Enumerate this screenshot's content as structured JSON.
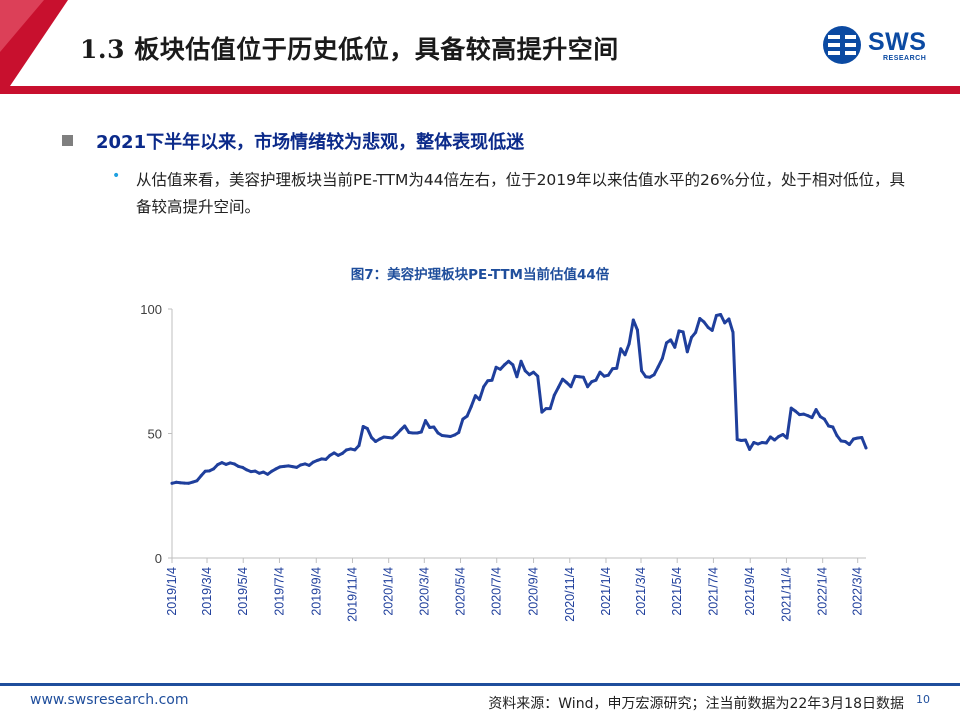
{
  "header": {
    "title": "1.3 板块估值位于历史低位，具备较高提升空间",
    "logo_text": "SWS",
    "logo_sub": "RESEARCH",
    "accent_color": "#c8102e",
    "brand_color": "#0b4aa2"
  },
  "body": {
    "heading": "2021下半年以来，市场情绪较为悲观，整体表现低迷",
    "point": "从估值来看，美容护理板块当前PE-TTM为44倍左右，位于2019年以来估值水平的26%分位，处于相对低位，具备较高提升空间。",
    "bullet_icon": "square-bullet-icon",
    "sub_bullet_icon": "dot-bullet-icon"
  },
  "chart_data": {
    "type": "line",
    "title": "图7：美容护理板块PE-TTM当前估值44倍",
    "xlabel": "",
    "ylabel": "",
    "ylim": [
      0,
      100
    ],
    "yticks": [
      "0",
      "50",
      "100"
    ],
    "x_ticks": [
      "2019/1/4",
      "2019/3/4",
      "2019/5/4",
      "2019/7/4",
      "2019/9/4",
      "2019/11/4",
      "2020/1/4",
      "2020/3/4",
      "2020/5/4",
      "2020/7/4",
      "2020/9/4",
      "2020/11/4",
      "2021/1/4",
      "2021/3/4",
      "2021/5/4",
      "2021/7/4",
      "2021/9/4",
      "2021/11/4",
      "2022/1/4",
      "2022/3/4"
    ],
    "grid": false,
    "line_color": "#1f3f9c",
    "series": [
      {
        "points": [
          [
            "2019-01-04",
            30.0
          ],
          [
            "2019-01-11",
            30.4
          ],
          [
            "2019-01-18",
            30.2
          ],
          [
            "2019-01-25",
            30.1
          ],
          [
            "2019-02-01",
            30.0
          ],
          [
            "2019-02-08",
            30.5
          ],
          [
            "2019-02-15",
            31.0
          ],
          [
            "2019-02-22",
            33.0
          ],
          [
            "2019-03-01",
            34.8
          ],
          [
            "2019-03-08",
            35.0
          ],
          [
            "2019-03-15",
            35.8
          ],
          [
            "2019-03-22",
            37.5
          ],
          [
            "2019-03-29",
            38.3
          ],
          [
            "2019-04-05",
            37.6
          ],
          [
            "2019-04-12",
            38.2
          ],
          [
            "2019-04-19",
            37.8
          ],
          [
            "2019-04-26",
            36.8
          ],
          [
            "2019-05-03",
            36.4
          ],
          [
            "2019-05-10",
            35.4
          ],
          [
            "2019-05-17",
            34.7
          ],
          [
            "2019-05-24",
            34.9
          ],
          [
            "2019-05-31",
            34.0
          ],
          [
            "2019-06-07",
            34.5
          ],
          [
            "2019-06-14",
            33.6
          ],
          [
            "2019-06-21",
            34.8
          ],
          [
            "2019-06-28",
            35.8
          ],
          [
            "2019-07-05",
            36.6
          ],
          [
            "2019-07-12",
            36.8
          ],
          [
            "2019-07-19",
            37.0
          ],
          [
            "2019-07-26",
            36.7
          ],
          [
            "2019-08-02",
            36.4
          ],
          [
            "2019-08-09",
            37.4
          ],
          [
            "2019-08-16",
            37.8
          ],
          [
            "2019-08-23",
            37.2
          ],
          [
            "2019-08-30",
            38.5
          ],
          [
            "2019-09-06",
            39.2
          ],
          [
            "2019-09-13",
            39.8
          ],
          [
            "2019-09-20",
            39.6
          ],
          [
            "2019-09-27",
            41.2
          ],
          [
            "2019-10-04",
            42.2
          ],
          [
            "2019-10-11",
            41.2
          ],
          [
            "2019-10-18",
            42.0
          ],
          [
            "2019-10-25",
            43.4
          ],
          [
            "2019-11-01",
            43.8
          ],
          [
            "2019-11-08",
            43.4
          ],
          [
            "2019-11-15",
            45.2
          ],
          [
            "2019-11-22",
            52.8
          ],
          [
            "2019-11-29",
            52.0
          ],
          [
            "2019-12-06",
            48.4
          ],
          [
            "2019-12-13",
            46.8
          ],
          [
            "2019-12-20",
            47.8
          ],
          [
            "2019-12-27",
            48.6
          ],
          [
            "2020-01-03",
            48.4
          ],
          [
            "2020-01-10",
            48.2
          ],
          [
            "2020-01-17",
            49.6
          ],
          [
            "2020-01-24",
            51.4
          ],
          [
            "2020-01-31",
            53.0
          ],
          [
            "2020-02-07",
            50.4
          ],
          [
            "2020-02-14",
            50.2
          ],
          [
            "2020-02-21",
            50.2
          ],
          [
            "2020-02-28",
            50.6
          ],
          [
            "2020-03-06",
            55.2
          ],
          [
            "2020-03-13",
            52.4
          ],
          [
            "2020-03-20",
            52.6
          ],
          [
            "2020-03-27",
            50.2
          ],
          [
            "2020-04-03",
            49.2
          ],
          [
            "2020-04-10",
            49.0
          ],
          [
            "2020-04-17",
            48.8
          ],
          [
            "2020-04-24",
            49.4
          ],
          [
            "2020-05-01",
            50.4
          ],
          [
            "2020-05-08",
            55.8
          ],
          [
            "2020-05-15",
            57.0
          ],
          [
            "2020-05-22",
            60.8
          ],
          [
            "2020-05-29",
            65.2
          ],
          [
            "2020-06-05",
            63.6
          ],
          [
            "2020-06-12",
            68.8
          ],
          [
            "2020-06-19",
            71.2
          ],
          [
            "2020-06-26",
            71.4
          ],
          [
            "2020-07-03",
            76.6
          ],
          [
            "2020-07-10",
            75.8
          ],
          [
            "2020-07-17",
            77.6
          ],
          [
            "2020-07-24",
            79.0
          ],
          [
            "2020-07-31",
            77.6
          ],
          [
            "2020-08-07",
            72.8
          ],
          [
            "2020-08-14",
            79.0
          ],
          [
            "2020-08-21",
            75.2
          ],
          [
            "2020-08-28",
            73.6
          ],
          [
            "2020-09-04",
            74.6
          ],
          [
            "2020-09-11",
            73.0
          ],
          [
            "2020-09-18",
            58.6
          ],
          [
            "2020-09-25",
            60.0
          ],
          [
            "2020-10-02",
            60.0
          ],
          [
            "2020-10-09",
            65.4
          ],
          [
            "2020-10-16",
            68.6
          ],
          [
            "2020-10-23",
            71.8
          ],
          [
            "2020-10-30",
            70.4
          ],
          [
            "2020-11-06",
            68.8
          ],
          [
            "2020-11-13",
            73.0
          ],
          [
            "2020-11-20",
            72.8
          ],
          [
            "2020-11-27",
            72.6
          ],
          [
            "2020-12-04",
            68.8
          ],
          [
            "2020-12-11",
            70.8
          ],
          [
            "2020-12-18",
            71.4
          ],
          [
            "2020-12-25",
            74.6
          ],
          [
            "2021-01-01",
            73.0
          ],
          [
            "2021-01-08",
            73.4
          ],
          [
            "2021-01-15",
            76.0
          ],
          [
            "2021-01-22",
            76.2
          ],
          [
            "2021-01-29",
            84.0
          ],
          [
            "2021-02-05",
            81.6
          ],
          [
            "2021-02-12",
            86.0
          ],
          [
            "2021-02-19",
            95.6
          ],
          [
            "2021-02-26",
            91.6
          ],
          [
            "2021-03-05",
            75.2
          ],
          [
            "2021-03-12",
            72.8
          ],
          [
            "2021-03-19",
            72.6
          ],
          [
            "2021-03-26",
            73.6
          ],
          [
            "2021-04-02",
            76.8
          ],
          [
            "2021-04-09",
            80.2
          ],
          [
            "2021-04-16",
            86.4
          ],
          [
            "2021-04-23",
            87.6
          ],
          [
            "2021-04-30",
            84.6
          ],
          [
            "2021-05-07",
            91.2
          ],
          [
            "2021-05-14",
            90.8
          ],
          [
            "2021-05-21",
            82.8
          ],
          [
            "2021-05-28",
            88.6
          ],
          [
            "2021-06-04",
            90.6
          ],
          [
            "2021-06-11",
            96.2
          ],
          [
            "2021-06-18",
            94.8
          ],
          [
            "2021-06-25",
            92.6
          ],
          [
            "2021-07-02",
            91.4
          ],
          [
            "2021-07-09",
            97.4
          ],
          [
            "2021-07-16",
            97.8
          ],
          [
            "2021-07-23",
            94.4
          ],
          [
            "2021-07-30",
            96.0
          ],
          [
            "2021-08-06",
            90.6
          ],
          [
            "2021-08-13",
            47.6
          ],
          [
            "2021-08-20",
            47.2
          ],
          [
            "2021-08-27",
            47.4
          ],
          [
            "2021-09-03",
            43.6
          ],
          [
            "2021-09-10",
            46.4
          ],
          [
            "2021-09-17",
            45.8
          ],
          [
            "2021-09-24",
            46.4
          ],
          [
            "2021-10-01",
            46.2
          ],
          [
            "2021-10-08",
            48.6
          ],
          [
            "2021-10-15",
            47.4
          ],
          [
            "2021-10-22",
            48.8
          ],
          [
            "2021-10-29",
            49.6
          ],
          [
            "2021-11-05",
            48.2
          ],
          [
            "2021-11-12",
            60.2
          ],
          [
            "2021-11-19",
            59.0
          ],
          [
            "2021-11-26",
            57.6
          ],
          [
            "2021-12-03",
            57.8
          ],
          [
            "2021-12-10",
            57.2
          ],
          [
            "2021-12-17",
            56.4
          ],
          [
            "2021-12-24",
            59.6
          ],
          [
            "2021-12-31",
            56.8
          ],
          [
            "2022-01-07",
            55.8
          ],
          [
            "2022-01-14",
            53.0
          ],
          [
            "2022-01-21",
            52.6
          ],
          [
            "2022-01-28",
            49.2
          ],
          [
            "2022-02-04",
            47.0
          ],
          [
            "2022-02-11",
            46.8
          ],
          [
            "2022-02-18",
            45.6
          ],
          [
            "2022-02-25",
            47.8
          ],
          [
            "2022-03-04",
            48.2
          ],
          [
            "2022-03-11",
            48.4
          ],
          [
            "2022-03-18",
            44.2
          ]
        ]
      }
    ]
  },
  "footer": {
    "url": "www.swsresearch.com",
    "source": "资料来源：Wind，申万宏源研究；注当前数据为22年3月18日数据",
    "page": "10"
  }
}
